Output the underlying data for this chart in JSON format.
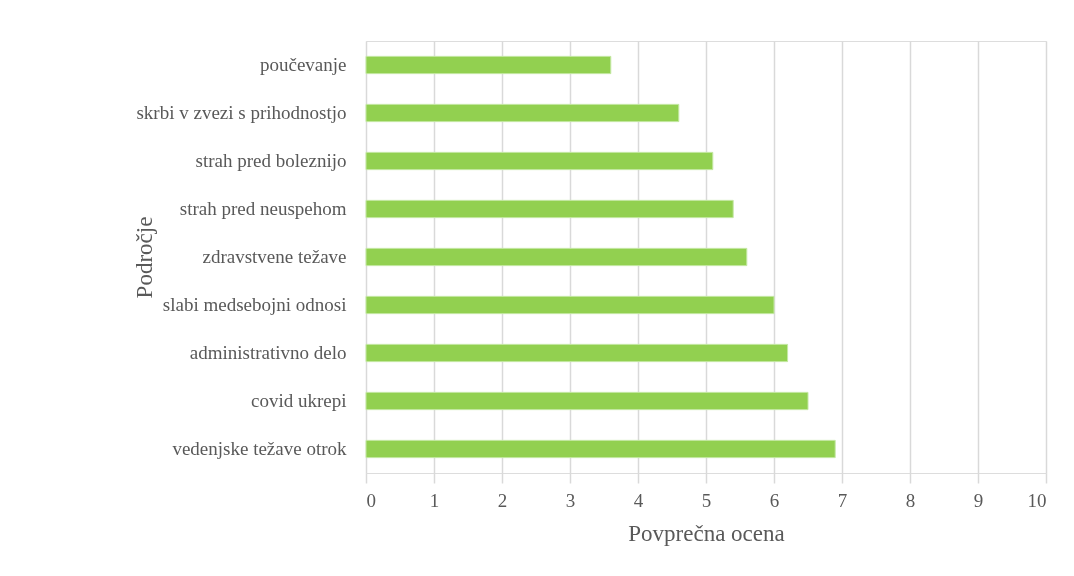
{
  "chart_data": {
    "type": "bar",
    "orientation": "horizontal",
    "categories": [
      "poučevanje",
      "skrbi v zvezi s prihodnostjo",
      "strah pred boleznijo",
      "strah pred neuspehom",
      "zdravstvene težave",
      "slabi medsebojni odnosi",
      "administrativno delo",
      "covid ukrepi",
      "vedenjske težave otrok"
    ],
    "values": [
      3.6,
      4.6,
      5.1,
      5.4,
      5.6,
      6.0,
      6.2,
      6.5,
      6.9
    ],
    "color": "#92d050",
    "xlabel": "Povprečna ocena",
    "ylabel": "Področje",
    "xlim": [
      0,
      10
    ],
    "xticks": [
      0,
      1,
      2,
      3,
      4,
      5,
      6,
      7,
      8,
      9,
      10
    ],
    "grid": "x"
  }
}
